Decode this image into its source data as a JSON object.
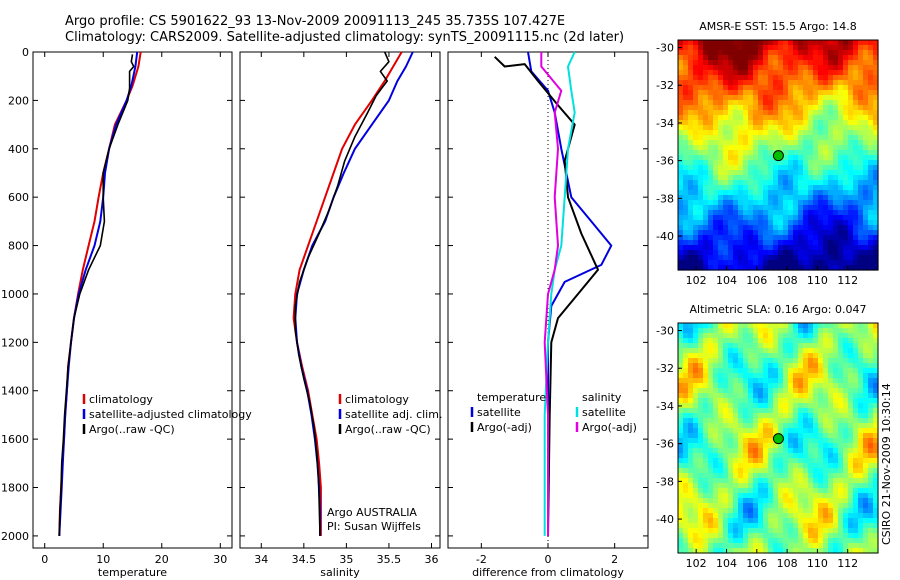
{
  "header": {
    "line1": "Argo profile: CS 5901622_93 13-Nov-2009 20091113_245 35.735S 107.427E",
    "line2": "Climatology: CARS2009. Satellite-adjusted climatology: synTS_20091115.nc (2d later)"
  },
  "side_label": "CSIRO 21-Nov-2009 10:30:14",
  "colors": {
    "climatology": "#e00000",
    "satellite": "#0000e0",
    "argo": "#000000",
    "sat_salinity": "#00e0e0",
    "argo_salinity_adj": "#e000e0",
    "frame": "#000000"
  },
  "chart_data": [
    {
      "id": "temperature",
      "type": "line",
      "xlabel": "temperature",
      "ylabel": "",
      "xlim": [
        -2,
        32
      ],
      "ylim": [
        2050,
        0
      ],
      "xticks": [
        "0",
        "10",
        "20",
        "30"
      ],
      "xtick_values": [
        0,
        10,
        20,
        30
      ],
      "yticks": [
        "0",
        "200",
        "400",
        "600",
        "800",
        "1000",
        "1200",
        "1400",
        "1600",
        "1800",
        "2000"
      ],
      "ytick_values": [
        0,
        200,
        400,
        600,
        800,
        1000,
        1200,
        1400,
        1600,
        1800,
        2000
      ],
      "legend": [
        {
          "label": "climatology",
          "color": "#e00000"
        },
        {
          "label": "satellite-adjusted climatology",
          "color": "#0000e0"
        },
        {
          "label": "Argo(..raw -QC)",
          "color": "#000000"
        }
      ],
      "series": [
        {
          "name": "climatology",
          "color": "#e00000",
          "points": [
            [
              16.4,
              0
            ],
            [
              16,
              60
            ],
            [
              15,
              140
            ],
            [
              14,
              200
            ],
            [
              12,
              300
            ],
            [
              11,
              400
            ],
            [
              10,
              500
            ],
            [
              9.2,
              600
            ],
            [
              8.5,
              700
            ],
            [
              7.5,
              800
            ],
            [
              6.5,
              900
            ],
            [
              5.7,
              1000
            ],
            [
              5,
              1100
            ],
            [
              4.5,
              1200
            ],
            [
              4,
              1300
            ],
            [
              3.8,
              1400
            ],
            [
              3.5,
              1500
            ],
            [
              3.3,
              1600
            ],
            [
              3,
              1700
            ],
            [
              2.8,
              1800
            ],
            [
              2.6,
              1900
            ],
            [
              2.5,
              2000
            ]
          ]
        },
        {
          "name": "satellite-adjusted climatology",
          "color": "#0000e0",
          "points": [
            [
              15.8,
              0
            ],
            [
              15.5,
              60
            ],
            [
              14.8,
              140
            ],
            [
              14,
              200
            ],
            [
              12.2,
              300
            ],
            [
              11,
              400
            ],
            [
              10.3,
              500
            ],
            [
              10,
              600
            ],
            [
              9.5,
              700
            ],
            [
              8.5,
              800
            ],
            [
              7,
              900
            ],
            [
              5.8,
              1000
            ],
            [
              5,
              1100
            ],
            [
              4.5,
              1200
            ],
            [
              4.1,
              1300
            ],
            [
              3.8,
              1400
            ],
            [
              3.5,
              1500
            ],
            [
              3.3,
              1600
            ],
            [
              3.1,
              1700
            ],
            [
              2.9,
              1800
            ],
            [
              2.7,
              1900
            ],
            [
              2.5,
              2000
            ]
          ]
        },
        {
          "name": "Argo(..raw -QC)",
          "color": "#000000",
          "points": [
            [
              15,
              10
            ],
            [
              14.8,
              40
            ],
            [
              15.2,
              60
            ],
            [
              14.5,
              80
            ],
            [
              14.5,
              150
            ],
            [
              14.2,
              200
            ],
            [
              12.5,
              300
            ],
            [
              11,
              400
            ],
            [
              10,
              500
            ],
            [
              10,
              600
            ],
            [
              10.2,
              700
            ],
            [
              9.5,
              800
            ],
            [
              7.5,
              900
            ],
            [
              6,
              1000
            ],
            [
              5,
              1100
            ],
            [
              4.5,
              1200
            ],
            [
              4,
              1300
            ],
            [
              3.7,
              1400
            ],
            [
              3.4,
              1500
            ],
            [
              3.2,
              1600
            ],
            [
              2.9,
              1700
            ],
            [
              2.8,
              1800
            ],
            [
              2.6,
              1900
            ],
            [
              2.5,
              2000
            ]
          ]
        }
      ]
    },
    {
      "id": "salinity",
      "type": "line",
      "xlabel": "salinity",
      "ylabel": "",
      "xlim": [
        33.75,
        36.1
      ],
      "ylim": [
        2050,
        0
      ],
      "xticks": [
        "34",
        "34.5",
        "35",
        "35.5",
        "36"
      ],
      "xtick_values": [
        34,
        34.5,
        35,
        35.5,
        36
      ],
      "legend": [
        {
          "label": "climatology",
          "color": "#e00000"
        },
        {
          "label": "satellite adj. clim.",
          "color": "#0000e0"
        },
        {
          "label": "Argo(..raw -QC)",
          "color": "#000000"
        }
      ],
      "annotations": [
        "Argo AUSTRALIA",
        "PI: Susan Wijffels"
      ],
      "series": [
        {
          "name": "climatology",
          "color": "#e00000",
          "points": [
            [
              35.65,
              0
            ],
            [
              35.55,
              60
            ],
            [
              35.45,
              120
            ],
            [
              35.3,
              200
            ],
            [
              35.1,
              300
            ],
            [
              34.95,
              400
            ],
            [
              34.85,
              500
            ],
            [
              34.75,
              600
            ],
            [
              34.65,
              700
            ],
            [
              34.55,
              800
            ],
            [
              34.45,
              900
            ],
            [
              34.4,
              1000
            ],
            [
              34.38,
              1100
            ],
            [
              34.42,
              1200
            ],
            [
              34.48,
              1300
            ],
            [
              34.55,
              1400
            ],
            [
              34.6,
              1500
            ],
            [
              34.65,
              1600
            ],
            [
              34.68,
              1700
            ],
            [
              34.7,
              1800
            ],
            [
              34.7,
              1900
            ],
            [
              34.7,
              2000
            ]
          ]
        },
        {
          "name": "satellite adj. clim.",
          "color": "#0000e0",
          "points": [
            [
              35.78,
              0
            ],
            [
              35.7,
              60
            ],
            [
              35.6,
              120
            ],
            [
              35.5,
              200
            ],
            [
              35.3,
              300
            ],
            [
              35.1,
              400
            ],
            [
              34.97,
              500
            ],
            [
              34.85,
              600
            ],
            [
              34.75,
              700
            ],
            [
              34.6,
              800
            ],
            [
              34.5,
              900
            ],
            [
              34.42,
              1000
            ],
            [
              34.4,
              1100
            ],
            [
              34.42,
              1200
            ],
            [
              34.47,
              1300
            ],
            [
              34.54,
              1400
            ],
            [
              34.59,
              1500
            ],
            [
              34.63,
              1600
            ],
            [
              34.66,
              1700
            ],
            [
              34.68,
              1800
            ],
            [
              34.69,
              1900
            ],
            [
              34.69,
              2000
            ]
          ]
        },
        {
          "name": "Argo(..raw -QC)",
          "color": "#000000",
          "points": [
            [
              35.45,
              0
            ],
            [
              35.5,
              40
            ],
            [
              35.4,
              80
            ],
            [
              35.48,
              120
            ],
            [
              35.35,
              180
            ],
            [
              35.25,
              250
            ],
            [
              35.1,
              350
            ],
            [
              34.98,
              450
            ],
            [
              34.9,
              550
            ],
            [
              34.8,
              650
            ],
            [
              34.68,
              750
            ],
            [
              34.55,
              850
            ],
            [
              34.45,
              950
            ],
            [
              34.4,
              1050
            ],
            [
              34.4,
              1150
            ],
            [
              34.44,
              1250
            ],
            [
              34.5,
              1350
            ],
            [
              34.57,
              1450
            ],
            [
              34.62,
              1550
            ],
            [
              34.65,
              1650
            ],
            [
              34.67,
              1750
            ],
            [
              34.68,
              1850
            ],
            [
              34.69,
              2000
            ]
          ]
        }
      ]
    },
    {
      "id": "difference",
      "type": "line",
      "xlabel": "difference from climatology",
      "ylabel": "",
      "xlim": [
        -3,
        3
      ],
      "ylim": [
        2050,
        0
      ],
      "xticks": [
        "-2",
        "0",
        "2"
      ],
      "xtick_values": [
        -2,
        0,
        2
      ],
      "zero_line": 0,
      "legend": [
        {
          "label": "temperature",
          "color": ""
        },
        {
          "label": "satellite",
          "color": "#0000e0"
        },
        {
          "label": "Argo(-adj)",
          "color": "#000000"
        },
        {
          "label": "salinity",
          "color": ""
        },
        {
          "label": "satellite",
          "color": "#00e0e0"
        },
        {
          "label": "Argo(-adj)",
          "color": "#e000e0"
        }
      ],
      "series": [
        {
          "name": "temperature satellite",
          "color": "#0000e0",
          "points": [
            [
              -0.6,
              0
            ],
            [
              -0.5,
              80
            ],
            [
              0,
              160
            ],
            [
              0.2,
              250
            ],
            [
              0.4,
              400
            ],
            [
              0.7,
              600
            ],
            [
              1.3,
              700
            ],
            [
              1.9,
              800
            ],
            [
              1.6,
              880
            ],
            [
              0.5,
              950
            ],
            [
              0.1,
              1050
            ],
            [
              0,
              1200
            ],
            [
              0,
              1500
            ],
            [
              0,
              2000
            ]
          ]
        },
        {
          "name": "temperature Argo(-adj)",
          "color": "#000000",
          "points": [
            [
              -1.6,
              20
            ],
            [
              -1.3,
              60
            ],
            [
              -0.7,
              50
            ],
            [
              -0.3,
              120
            ],
            [
              0.3,
              220
            ],
            [
              0.8,
              300
            ],
            [
              0.5,
              450
            ],
            [
              0.6,
              600
            ],
            [
              1.0,
              750
            ],
            [
              1.5,
              900
            ],
            [
              0.9,
              1000
            ],
            [
              0.3,
              1100
            ],
            [
              0.1,
              1200
            ],
            [
              0.05,
              1500
            ],
            [
              0,
              2000
            ]
          ]
        },
        {
          "name": "salinity satellite",
          "color": "#00e0e0",
          "points": [
            [
              0.8,
              0
            ],
            [
              0.6,
              60
            ],
            [
              0.7,
              160
            ],
            [
              0.8,
              250
            ],
            [
              0.6,
              400
            ],
            [
              0.5,
              600
            ],
            [
              0.4,
              800
            ],
            [
              0.2,
              900
            ],
            [
              0.1,
              1000
            ],
            [
              0,
              1200
            ],
            [
              -0.1,
              1500
            ],
            [
              -0.1,
              2000
            ]
          ]
        },
        {
          "name": "salinity Argo(-adj)",
          "color": "#e000e0",
          "points": [
            [
              -0.2,
              0
            ],
            [
              -0.2,
              60
            ],
            [
              0.4,
              160
            ],
            [
              0.2,
              250
            ],
            [
              0.3,
              400
            ],
            [
              0.2,
              600
            ],
            [
              0.3,
              800
            ],
            [
              0.2,
              900
            ],
            [
              0,
              1000
            ],
            [
              -0.1,
              1200
            ],
            [
              0,
              1500
            ],
            [
              0,
              2000
            ]
          ]
        }
      ]
    },
    {
      "id": "sst_map",
      "type": "heatmap",
      "title": "AMSR-E SST: 15.5 Argo: 14.8",
      "xlim": [
        100.8,
        114
      ],
      "ylim": [
        -41.8,
        -29.6
      ],
      "xticks": [
        "102",
        "104",
        "106",
        "108",
        "110",
        "112"
      ],
      "xtick_values": [
        102,
        104,
        106,
        108,
        110,
        112
      ],
      "yticks": [
        "-30",
        "-32",
        "-34",
        "-36",
        "-38",
        "-40"
      ],
      "ytick_values": [
        -30,
        -32,
        -34,
        -36,
        -38,
        -40
      ],
      "marker": {
        "lon": 107.427,
        "lat": -35.735,
        "color": "#00c000"
      }
    },
    {
      "id": "sla_map",
      "type": "heatmap",
      "title": "Altimetric SLA: 0.16 Argo: 0.047",
      "xlim": [
        100.8,
        114
      ],
      "ylim": [
        -41.8,
        -29.6
      ],
      "xticks": [
        "102",
        "104",
        "106",
        "108",
        "110",
        "112"
      ],
      "xtick_values": [
        102,
        104,
        106,
        108,
        110,
        112
      ],
      "yticks": [
        "-30",
        "-32",
        "-34",
        "-36",
        "-38",
        "-40"
      ],
      "ytick_values": [
        -30,
        -32,
        -34,
        -36,
        -38,
        -40
      ],
      "marker": {
        "lon": 107.427,
        "lat": -35.735,
        "color": "#00c000"
      }
    }
  ]
}
